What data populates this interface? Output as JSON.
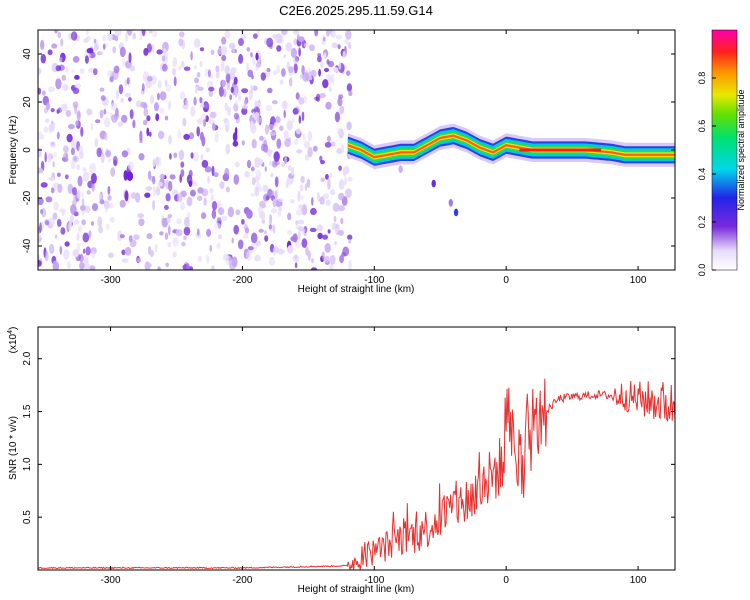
{
  "title": "C2E6.2025.295.11.59.G14",
  "chart_data": [
    {
      "type": "heatmap",
      "xlabel": "Height of straight line (km)",
      "ylabel": "Frequency (Hz)",
      "xlim": [
        -355,
        128
      ],
      "ylim": [
        -50,
        50
      ],
      "xticks": [
        -300,
        -200,
        -100,
        0,
        100
      ],
      "yticks": [
        -40,
        -20,
        0,
        20,
        40
      ],
      "noise_region": [
        -355,
        -118
      ],
      "trace": {
        "x": [
          -120,
          -110,
          -100,
          -90,
          -80,
          -70,
          -60,
          -50,
          -40,
          -30,
          -20,
          -10,
          0,
          10,
          20,
          40,
          60,
          80,
          90,
          100,
          110,
          128
        ],
        "y": [
          2,
          0,
          -3,
          -2,
          -1,
          -1,
          2,
          5,
          6,
          4,
          1,
          -1,
          2,
          1,
          0,
          0,
          0,
          -1,
          -2,
          -2,
          -2,
          -2
        ]
      },
      "colorbar": {
        "label": "Normalized spectral amplitude",
        "range": [
          0,
          1
        ],
        "ticks": [
          0.0,
          0.2,
          0.4,
          0.6,
          0.8
        ]
      }
    },
    {
      "type": "line",
      "xlabel": "Height of straight line (km)",
      "ylabel": "SNR (10 * v/v)",
      "scale_label": "(x10",
      "scale_exp": "4",
      "scale_close": ")",
      "xlim": [
        -355,
        128
      ],
      "ylim": [
        0,
        2.3
      ],
      "xticks": [
        -300,
        -200,
        -100,
        0,
        100
      ],
      "yticks": [
        0.5,
        1.0,
        1.5,
        2.0
      ],
      "series": [
        {
          "name": "SNR",
          "color": "#e8302e",
          "x": [
            -355,
            -300,
            -200,
            -120,
            -105,
            -95,
            -80,
            -65,
            -50,
            -40,
            -30,
            -20,
            -10,
            0,
            5,
            10,
            20,
            30,
            40,
            50,
            60,
            70,
            80,
            90,
            100,
            110,
            120,
            128
          ],
          "y": [
            0.02,
            0.02,
            0.02,
            0.04,
            0.15,
            0.2,
            0.3,
            0.35,
            0.5,
            0.6,
            0.65,
            0.75,
            0.9,
            1.05,
            1.3,
            0.85,
            1.3,
            1.5,
            1.62,
            1.64,
            1.65,
            1.66,
            1.65,
            1.65,
            1.62,
            1.6,
            1.58,
            1.55
          ]
        }
      ]
    }
  ]
}
